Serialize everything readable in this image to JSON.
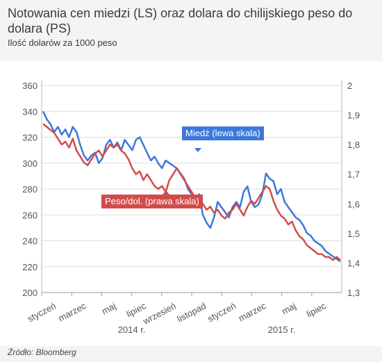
{
  "header": {
    "title": "Notowania cen miedzi (LS) oraz dolara do chilijskiego peso do dolara (PS)",
    "subtitle": "Ilość dolarów za 1000 peso"
  },
  "footer": {
    "source": "Źródło: Bloomberg"
  },
  "colors": {
    "copper": "#3c78d8",
    "peso": "#d24b4b",
    "grid": "#dddddd",
    "axis": "#555555"
  },
  "chart_data": {
    "type": "line",
    "left_axis": {
      "ticks": [
        "200",
        "220",
        "240",
        "260",
        "280",
        "300",
        "320",
        "340",
        "360"
      ],
      "ylim": [
        200,
        360
      ]
    },
    "right_axis": {
      "ticks": [
        "1,3",
        "1,4",
        "1,5",
        "1,6",
        "1,7",
        "1,8",
        "1,9",
        "2"
      ],
      "ylim": [
        1.3,
        2.0
      ]
    },
    "x_ticks": [
      "styczeń",
      "marzec",
      "maj",
      "lipiec",
      "wrzesień",
      "listopad",
      "styczeń",
      "marzec",
      "maj",
      "lipiec"
    ],
    "year_labels": [
      "2014 r.",
      "2015 r."
    ],
    "annotations": {
      "copper": "Miedź (lewa skala)",
      "peso": "Peso/dol. (prawa skala)"
    },
    "series": [
      {
        "name": "Miedź (lewa skala)",
        "axis": "left",
        "x": [
          0,
          0.25,
          0.5,
          0.75,
          1,
          1.25,
          1.5,
          1.75,
          2,
          2.25,
          2.5,
          2.75,
          3,
          3.25,
          3.5,
          3.75,
          4,
          4.25,
          4.5,
          4.75,
          5,
          5.25,
          5.5,
          5.75,
          6,
          6.25,
          6.5,
          6.75,
          7,
          7.25,
          7.5,
          7.75,
          8,
          8.25,
          8.5,
          8.75,
          9,
          9.25,
          9.5,
          9.75,
          10,
          10.25,
          10.5,
          10.75,
          11,
          11.25,
          11.5,
          11.75,
          12,
          12.25,
          12.5,
          12.75,
          13,
          13.25,
          13.5,
          13.75,
          14,
          14.25,
          14.5,
          14.75,
          15,
          15.25,
          15.5,
          15.75,
          16,
          16.25,
          16.5,
          16.75,
          17,
          17.25,
          17.5,
          17.75,
          18,
          18.25,
          18.5,
          18.75,
          19,
          19.25,
          19.5,
          19.75,
          20
        ],
        "values": [
          340,
          334,
          330,
          324,
          328,
          322,
          326,
          320,
          328,
          324,
          314,
          306,
          302,
          306,
          308,
          300,
          304,
          314,
          318,
          312,
          316,
          310,
          318,
          314,
          310,
          318,
          320,
          314,
          308,
          302,
          305,
          300,
          296,
          302,
          300,
          298,
          296,
          292,
          288,
          280,
          276,
          272,
          276,
          260,
          254,
          250,
          258,
          270,
          266,
          262,
          258,
          266,
          270,
          266,
          278,
          282,
          270,
          266,
          268,
          276,
          292,
          288,
          286,
          276,
          280,
          270,
          266,
          262,
          258,
          256,
          252,
          246,
          244,
          240,
          238,
          236,
          232,
          230,
          228,
          226,
          224
        ]
      },
      {
        "name": "Peso/dol. (prawa skala)",
        "axis": "right",
        "x": [
          0,
          0.25,
          0.5,
          0.75,
          1,
          1.25,
          1.5,
          1.75,
          2,
          2.25,
          2.5,
          2.75,
          3,
          3.25,
          3.5,
          3.75,
          4,
          4.25,
          4.5,
          4.75,
          5,
          5.25,
          5.5,
          5.75,
          6,
          6.25,
          6.5,
          6.75,
          7,
          7.25,
          7.5,
          7.75,
          8,
          8.25,
          8.5,
          8.75,
          9,
          9.25,
          9.5,
          9.75,
          10,
          10.25,
          10.5,
          10.75,
          11,
          11.25,
          11.5,
          11.75,
          12,
          12.25,
          12.5,
          12.75,
          13,
          13.25,
          13.5,
          13.75,
          14,
          14.25,
          14.5,
          14.75,
          15,
          15.25,
          15.5,
          15.75,
          16,
          16.25,
          16.5,
          16.75,
          17,
          17.25,
          17.5,
          17.75,
          18,
          18.25,
          18.5,
          18.75,
          19,
          19.25,
          19.5,
          19.75,
          20
        ],
        "values": [
          1.87,
          1.86,
          1.85,
          1.84,
          1.82,
          1.8,
          1.81,
          1.79,
          1.82,
          1.78,
          1.76,
          1.74,
          1.73,
          1.75,
          1.77,
          1.78,
          1.76,
          1.78,
          1.8,
          1.79,
          1.8,
          1.78,
          1.77,
          1.75,
          1.72,
          1.7,
          1.71,
          1.68,
          1.7,
          1.68,
          1.66,
          1.65,
          1.66,
          1.64,
          1.68,
          1.7,
          1.72,
          1.7,
          1.68,
          1.66,
          1.64,
          1.62,
          1.61,
          1.6,
          1.58,
          1.59,
          1.57,
          1.58,
          1.56,
          1.55,
          1.57,
          1.58,
          1.6,
          1.58,
          1.56,
          1.59,
          1.61,
          1.6,
          1.62,
          1.64,
          1.66,
          1.65,
          1.61,
          1.58,
          1.56,
          1.55,
          1.53,
          1.54,
          1.51,
          1.49,
          1.48,
          1.46,
          1.45,
          1.44,
          1.43,
          1.43,
          1.42,
          1.42,
          1.41,
          1.42,
          1.41
        ]
      }
    ]
  }
}
